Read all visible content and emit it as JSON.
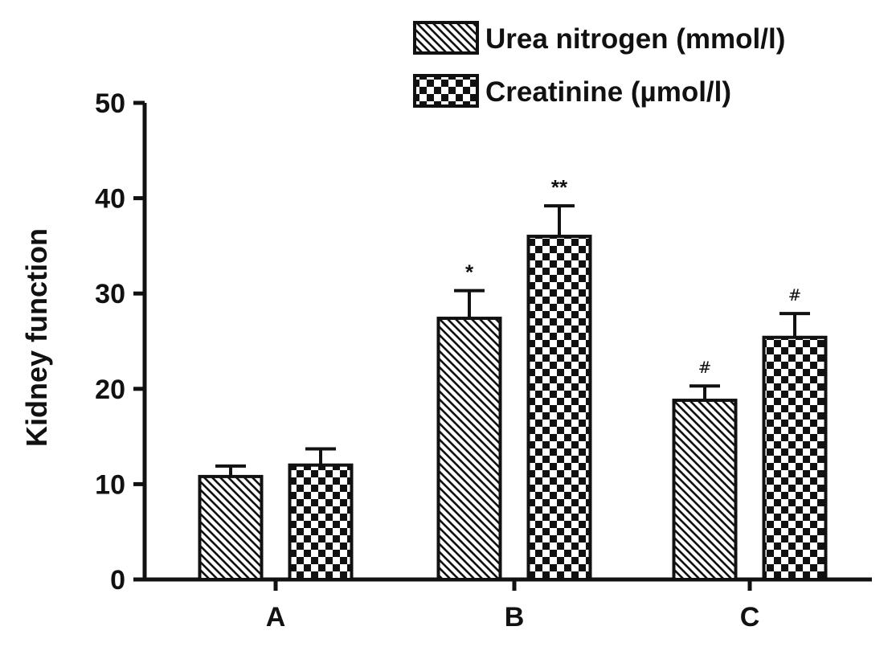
{
  "chart_data": {
    "type": "bar",
    "title": "",
    "xlabel": "",
    "ylabel": "Kidney function",
    "ylim": [
      0,
      50
    ],
    "yticks": [
      0,
      10,
      20,
      30,
      40,
      50
    ],
    "categories": [
      "A",
      "B",
      "C"
    ],
    "grid": false,
    "legend_position": "top-right",
    "series": [
      {
        "name": "Urea nitrogen (mmol/l)",
        "pattern": "diagonal-hatch",
        "values": [
          10.8,
          27.4,
          18.8
        ],
        "errors": [
          1.1,
          2.9,
          1.5
        ],
        "annotations": [
          "",
          "*",
          "#"
        ]
      },
      {
        "name": "Creatinine (µmol/l)",
        "pattern": "checkerboard",
        "values": [
          12.0,
          36.0,
          25.4
        ],
        "errors": [
          1.7,
          3.2,
          2.5
        ],
        "annotations": [
          "",
          "**",
          "#"
        ]
      }
    ]
  },
  "colors": {
    "ink": "#111111",
    "background": "#ffffff"
  }
}
